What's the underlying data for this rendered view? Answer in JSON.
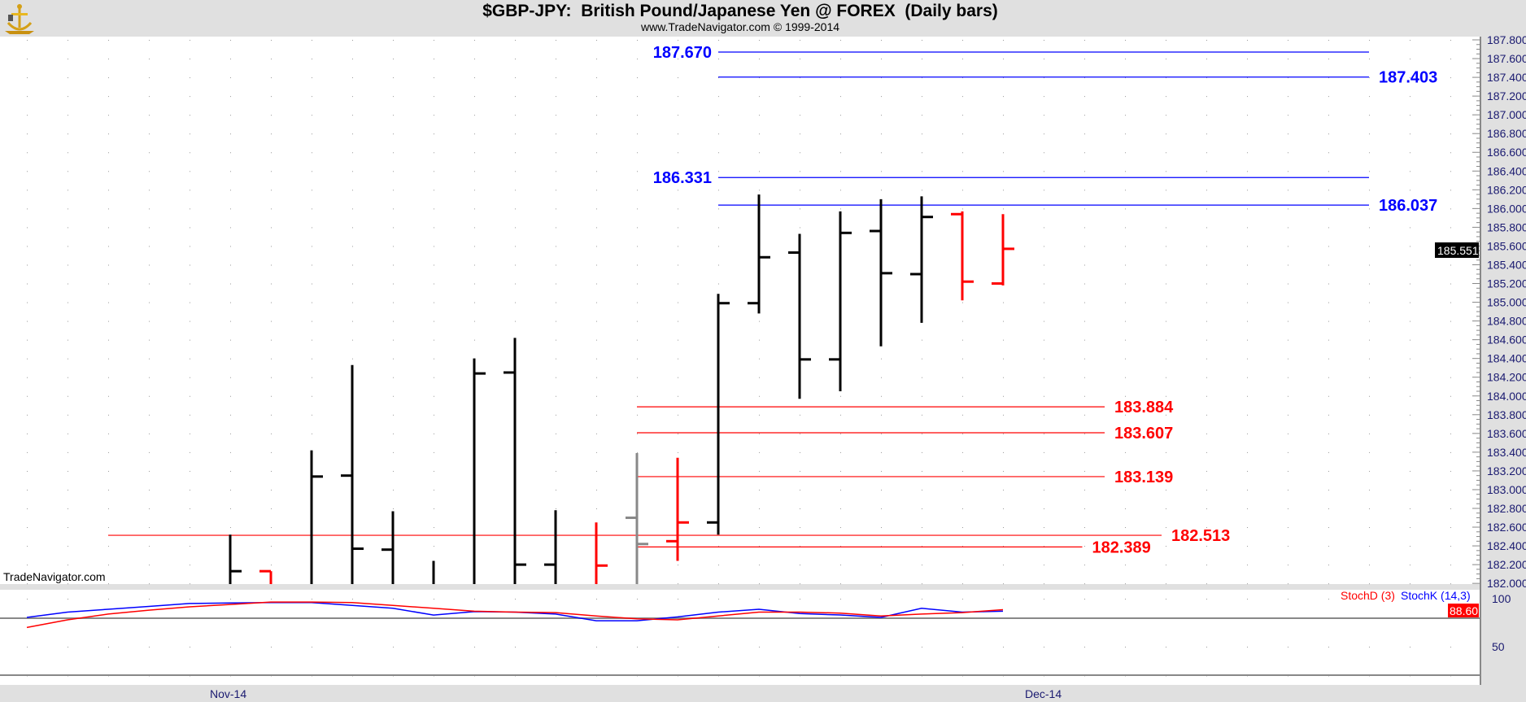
{
  "header": {
    "title": "$GBP-JPY:  British Pound/Japanese Yen @ FOREX  (Daily bars)",
    "subtitle": "www.TradeNavigator.com © 1999-2014",
    "watermark": "TradeNavigator.com"
  },
  "chart_data": {
    "type": "ohlc",
    "title": "$GBP-JPY:  British Pound/Japanese Yen @ FOREX  (Daily bars)",
    "ylim": [
      182.0,
      187.8
    ],
    "y_ticks": [
      "187.800",
      "187.600",
      "187.400",
      "187.200",
      "187.000",
      "186.800",
      "186.600",
      "186.400",
      "186.200",
      "186.000",
      "185.800",
      "185.600",
      "185.400",
      "185.200",
      "185.000",
      "184.800",
      "184.600",
      "184.400",
      "184.200",
      "184.000",
      "183.800",
      "183.600",
      "183.400",
      "183.200",
      "183.000",
      "182.800",
      "182.600",
      "182.400",
      "182.200",
      "182.000"
    ],
    "x_labels": [
      {
        "index": 5,
        "label": "Nov-14"
      },
      {
        "index": 25,
        "label": "Dec-14"
      }
    ],
    "grid": true,
    "last_price": "185.551",
    "colors": {
      "up": "#000000",
      "down": "#ff0000",
      "neutral": "#888888"
    },
    "bars": [
      {
        "i": 5,
        "o": null,
        "h": 182.52,
        "l": null,
        "c": 182.13,
        "color": "#000000"
      },
      {
        "i": 6,
        "o": 182.13,
        "h": 182.13,
        "l": null,
        "c": null,
        "color": "#ff0000"
      },
      {
        "i": 7,
        "o": null,
        "h": 183.42,
        "l": null,
        "c": 183.14,
        "color": "#000000"
      },
      {
        "i": 8,
        "o": 183.15,
        "h": 184.33,
        "l": null,
        "c": 182.37,
        "color": "#000000"
      },
      {
        "i": 9,
        "o": 182.36,
        "h": 182.77,
        "l": null,
        "c": null,
        "color": "#000000"
      },
      {
        "i": 10,
        "o": null,
        "h": 182.24,
        "l": null,
        "c": null,
        "color": "#000000"
      },
      {
        "i": 11,
        "o": null,
        "h": 184.4,
        "l": null,
        "c": 184.24,
        "color": "#000000"
      },
      {
        "i": 12,
        "o": 184.25,
        "h": 184.62,
        "l": null,
        "c": 182.2,
        "color": "#000000"
      },
      {
        "i": 13,
        "o": 182.2,
        "h": 182.78,
        "l": null,
        "c": null,
        "color": "#000000"
      },
      {
        "i": 14,
        "o": null,
        "h": 182.65,
        "l": null,
        "c": 182.19,
        "color": "#ff0000"
      },
      {
        "i": 15,
        "o": 182.7,
        "h": 183.39,
        "l": null,
        "c": 182.42,
        "color": "#888888"
      },
      {
        "i": 16,
        "o": 182.45,
        "h": 183.34,
        "l": 182.24,
        "c": 182.65,
        "color": "#ff0000"
      },
      {
        "i": 17,
        "o": 182.65,
        "h": 185.09,
        "l": 182.52,
        "c": 184.99,
        "color": "#000000"
      },
      {
        "i": 18,
        "o": 184.99,
        "h": 186.15,
        "l": 184.88,
        "c": 185.48,
        "color": "#000000"
      },
      {
        "i": 19,
        "o": 185.53,
        "h": 185.73,
        "l": 183.97,
        "c": 184.39,
        "color": "#000000"
      },
      {
        "i": 20,
        "o": 184.39,
        "h": 185.97,
        "l": 184.05,
        "c": 185.74,
        "color": "#000000"
      },
      {
        "i": 21,
        "o": 185.76,
        "h": 186.1,
        "l": 184.53,
        "c": 185.31,
        "color": "#000000"
      },
      {
        "i": 22,
        "o": 185.3,
        "h": 186.13,
        "l": 184.78,
        "c": 185.91,
        "color": "#000000"
      },
      {
        "i": 23,
        "o": 185.94,
        "h": 185.97,
        "l": 185.02,
        "c": 185.22,
        "color": "#ff0000"
      },
      {
        "i": 24,
        "o": 185.2,
        "h": 185.94,
        "l": 185.18,
        "c": 185.57,
        "color": "#ff0000"
      }
    ],
    "levels": [
      {
        "value": 187.67,
        "label": "187.670",
        "color": "#0000ff",
        "from": 17,
        "to": 33,
        "label_side": "left"
      },
      {
        "value": 187.403,
        "label": "187.403",
        "color": "#0000ff",
        "from": 17,
        "to": 33,
        "label_side": "right"
      },
      {
        "value": 186.331,
        "label": "186.331",
        "color": "#0000ff",
        "from": 17,
        "to": 33,
        "label_side": "left"
      },
      {
        "value": 186.037,
        "label": "186.037",
        "color": "#0000ff",
        "from": 17,
        "to": 33,
        "label_side": "right"
      },
      {
        "value": 183.884,
        "label": "183.884",
        "color": "#ff0000",
        "from": 15,
        "to": 26.5,
        "label_side": "right"
      },
      {
        "value": 183.607,
        "label": "183.607",
        "color": "#ff0000",
        "from": 15,
        "to": 26.5,
        "label_side": "right"
      },
      {
        "value": 183.139,
        "label": "183.139",
        "color": "#ff0000",
        "from": 15,
        "to": 26.5,
        "label_side": "right"
      },
      {
        "value": 182.513,
        "label": "182.513",
        "color": "#ff0000",
        "from": 2,
        "to": 27.9,
        "label_side": "right"
      },
      {
        "value": 182.389,
        "label": "182.389",
        "color": "#ff0000",
        "from": 15,
        "to": 25.95,
        "label_side": "right"
      }
    ],
    "stochastic": {
      "ylim": [
        0,
        100
      ],
      "y_ticks": [
        "100",
        "50"
      ],
      "reference_lines": [
        80,
        20
      ],
      "last_value": "88.60",
      "series": [
        {
          "name": "StochD (3)",
          "color": "#ff0000",
          "values": [
            70,
            78,
            84,
            88,
            91.5,
            94,
            96.5,
            96.5,
            96,
            93,
            90,
            87,
            86,
            85.5,
            82,
            79,
            78,
            82,
            86,
            86,
            85,
            82,
            84,
            85.5,
            88.6
          ]
        },
        {
          "name": "StochK (14,3)",
          "color": "#0000ff",
          "values": [
            80.5,
            86,
            89,
            92,
            95,
            95.5,
            96,
            96,
            93,
            90,
            83,
            86.5,
            86,
            84,
            77,
            77,
            81,
            86,
            89,
            84.5,
            83,
            80.5,
            90,
            86,
            87
          ]
        }
      ]
    }
  }
}
